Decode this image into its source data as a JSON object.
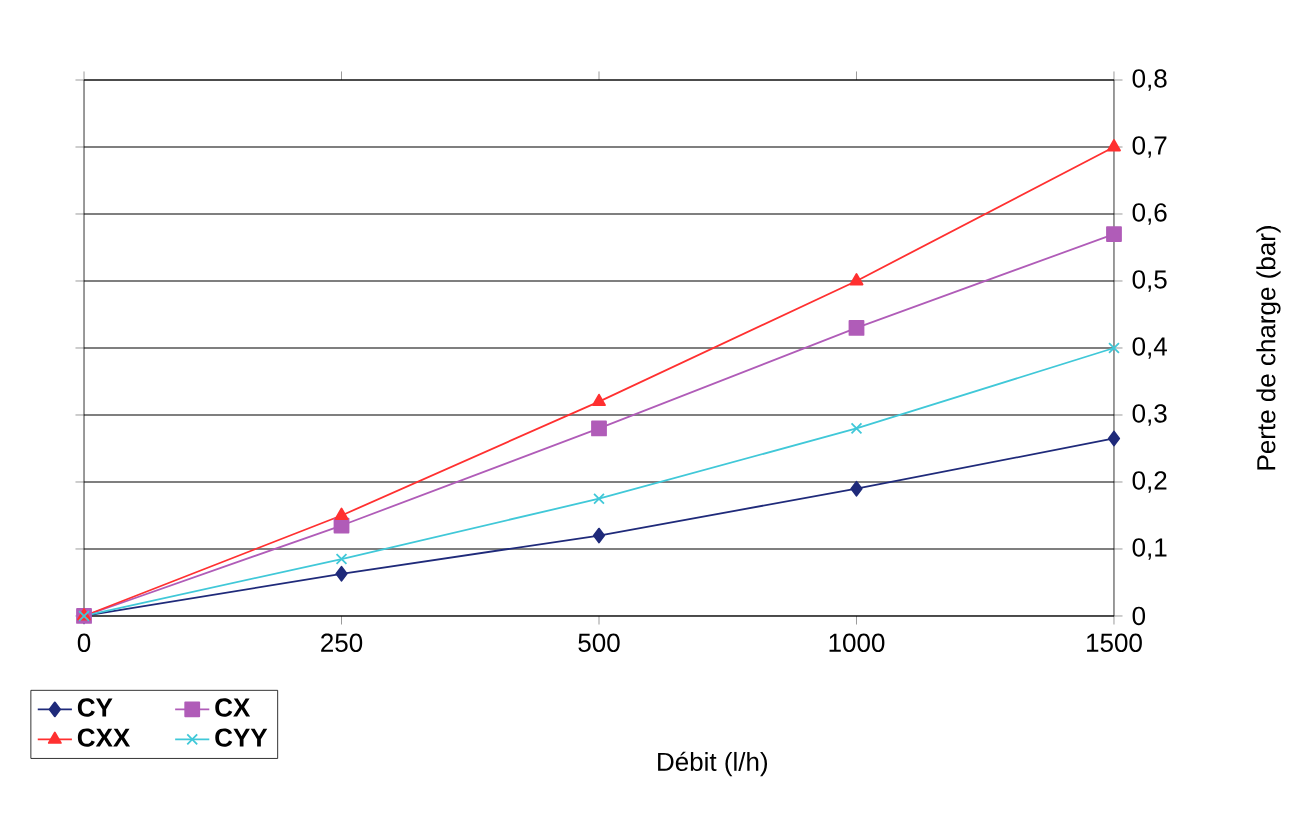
{
  "chart_data": {
    "type": "line",
    "categories": [
      "0",
      "250",
      "500",
      "1000",
      "1500"
    ],
    "xlabel": "Débit (l/h)",
    "ylabel": "Perte de charge (bar)",
    "ylim": [
      0,
      0.8
    ],
    "yticks": [
      0,
      {
        "value": 0.1,
        "label": "0,1"
      },
      {
        "value": 0.2,
        "label": "0,2"
      },
      {
        "value": 0.3,
        "label": "0,3"
      },
      {
        "value": 0.4,
        "label": "0,4"
      },
      {
        "value": 0.5,
        "label": "0,5"
      },
      {
        "value": 0.6,
        "label": "0,6"
      },
      {
        "value": 0.7,
        "label": "0,7"
      },
      {
        "value": 0.8,
        "label": "0,8"
      }
    ],
    "grid": "y",
    "legend": "bottom left",
    "line_style": "solid",
    "series": [
      {
        "name": "CY",
        "color": "#1f2a7a",
        "marker": "diamond",
        "values": [
          0,
          0.063,
          0.12,
          0.19,
          0.265
        ]
      },
      {
        "name": "CX",
        "color": "#b05cb8",
        "marker": "square",
        "values": [
          0,
          0.135,
          0.28,
          0.43,
          0.57
        ]
      },
      {
        "name": "CXX",
        "color": "#ff3030",
        "marker": "triangle",
        "values": [
          0,
          0.15,
          0.32,
          0.5,
          0.7
        ]
      },
      {
        "name": "CYY",
        "color": "#40c8d8",
        "marker": "cross",
        "values": [
          0,
          0.085,
          0.175,
          0.28,
          0.4
        ]
      }
    ]
  }
}
